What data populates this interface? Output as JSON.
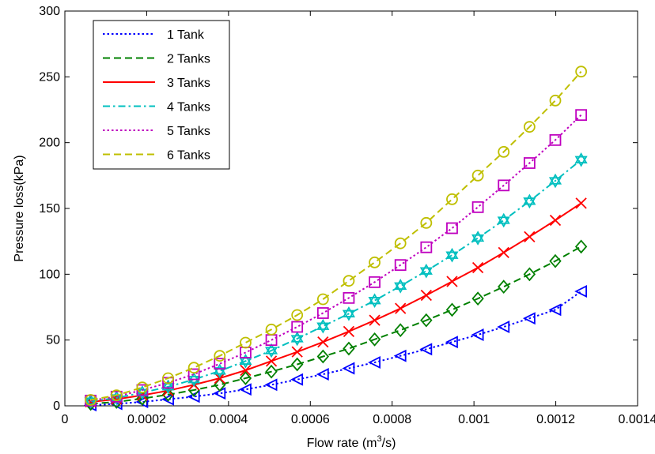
{
  "chart_data": {
    "type": "line",
    "title": "",
    "xlabel_prefix": "Flow rate (m",
    "xlabel_sup": "3",
    "xlabel_suffix": "/s)",
    "ylabel": "Pressure loss(kPa)",
    "xlim": [
      0,
      0.0014
    ],
    "ylim": [
      0,
      300
    ],
    "xticks": [
      "0",
      "0.0002",
      "0.0004",
      "0.0006",
      "0.0008",
      "0.001",
      "0.0012",
      "0.0014"
    ],
    "yticks": [
      "0",
      "50",
      "100",
      "150",
      "200",
      "250",
      "300"
    ],
    "grid": false,
    "legend_position": "top-left",
    "x": [
      6.31e-05,
      0.0001262,
      0.0001893,
      0.0002524,
      0.0003155,
      0.0003786,
      0.0004417,
      0.0005048,
      0.0005679,
      0.000631,
      0.0006941,
      0.0007572,
      0.0008203,
      0.0008834,
      0.0009465,
      0.0010096,
      0.0010727,
      0.0011358,
      0.0011989,
      0.001262
    ],
    "series": [
      {
        "name": "1 Tank",
        "color": "#0000ff",
        "dash": "dotted",
        "marker": "triangle-left",
        "values": [
          0.5,
          1.5,
          3,
          5,
          7,
          9.5,
          12.5,
          16,
          20,
          24,
          28.5,
          33,
          38,
          43,
          48.5,
          54,
          60,
          66.5,
          73,
          87
        ]
      },
      {
        "name": "2 Tanks",
        "color": "#008000",
        "dash": "dashed",
        "marker": "diamond",
        "values": [
          1.5,
          3,
          5.5,
          8.5,
          12,
          16,
          21,
          26,
          31.5,
          37.5,
          43.5,
          50.5,
          57.5,
          65,
          73,
          81.5,
          90.5,
          100,
          110,
          121
        ]
      },
      {
        "name": "3 Tanks",
        "color": "#ff0000",
        "dash": "solid",
        "marker": "x",
        "values": [
          3,
          5,
          8,
          11.5,
          16,
          21,
          27,
          34,
          41,
          48.5,
          56.5,
          65,
          74,
          84,
          94.5,
          105,
          116.5,
          128.5,
          141,
          154
        ]
      },
      {
        "name": "4 Tanks",
        "color": "#00bfbf",
        "dash": "dashdot",
        "marker": "hexagram",
        "values": [
          3.5,
          6,
          10,
          14.5,
          20,
          26.5,
          34,
          42,
          51,
          60.5,
          70,
          80,
          91,
          102.5,
          114.5,
          127.5,
          141,
          155.5,
          171,
          187
        ]
      },
      {
        "name": "5 Tanks",
        "color": "#bf00bf",
        "dash": "dotted",
        "marker": "square",
        "values": [
          4,
          7,
          12,
          17.5,
          24,
          32,
          40.5,
          50,
          60,
          70.5,
          82,
          94,
          107,
          120.5,
          135,
          151,
          167.5,
          184.5,
          202,
          221
        ]
      },
      {
        "name": "6 Tanks",
        "color": "#bfbf00",
        "dash": "dashed",
        "marker": "circle",
        "values": [
          4.5,
          8,
          14,
          21,
          29,
          38,
          48,
          58,
          69,
          81,
          95,
          109,
          123.5,
          139,
          157,
          175,
          193,
          212,
          232,
          254
        ]
      }
    ]
  }
}
